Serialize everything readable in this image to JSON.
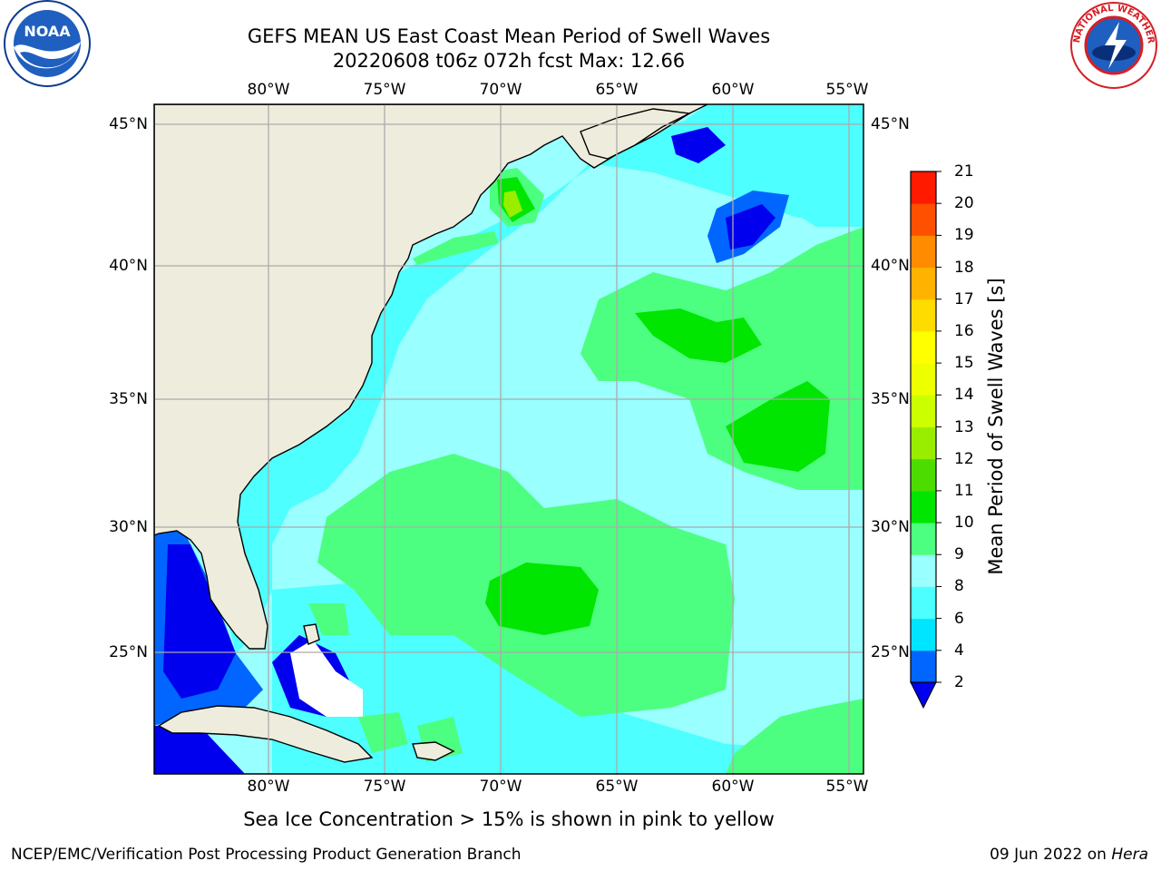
{
  "title": {
    "line1": "GEFS MEAN US East Coast Mean Period of Swell Waves",
    "line2": "20220608 t06z 072h fcst   Max: 12.66"
  },
  "axes": {
    "lon_labels": [
      "80°W",
      "75°W",
      "70°W",
      "65°W",
      "60°W",
      "55°W"
    ],
    "lat_labels": [
      "45°N",
      "40°N",
      "35°N",
      "30°N",
      "25°N"
    ],
    "lon_range": [
      -85,
      -54.5
    ],
    "lat_range": [
      20.5,
      45.8
    ],
    "grid": true
  },
  "colorbar": {
    "label": "Mean Period of Swell Waves [s]",
    "ticks": [
      "2",
      "4",
      "6",
      "8",
      "9",
      "10",
      "11",
      "12",
      "13",
      "14",
      "15",
      "16",
      "17",
      "18",
      "19",
      "20",
      "21"
    ],
    "colors": [
      "#0066ff",
      "#00e5ff",
      "#4dffff",
      "#99ffff",
      "#4dff80",
      "#00e600",
      "#4ddc00",
      "#99ee00",
      "#ccff00",
      "#eeff00",
      "#ffff00",
      "#ffdc00",
      "#ffb300",
      "#ff8c00",
      "#ff5000",
      "#ff1a00"
    ],
    "under_color": "#0000ee"
  },
  "colors": {
    "land": "#eeeddd",
    "ocean_base": "#99ffff",
    "grid": "#aaaaaa"
  },
  "logos": {
    "left": "NOAA",
    "right": "NATIONAL WEATHER SERVICE"
  },
  "footer": {
    "note": "Sea Ice Concentration > 15% is shown in pink to yellow",
    "credit": "NCEP/EMC/Verification Post Processing Product Generation Branch",
    "date_text": "09 Jun 2022 on ",
    "host": "Hera"
  }
}
